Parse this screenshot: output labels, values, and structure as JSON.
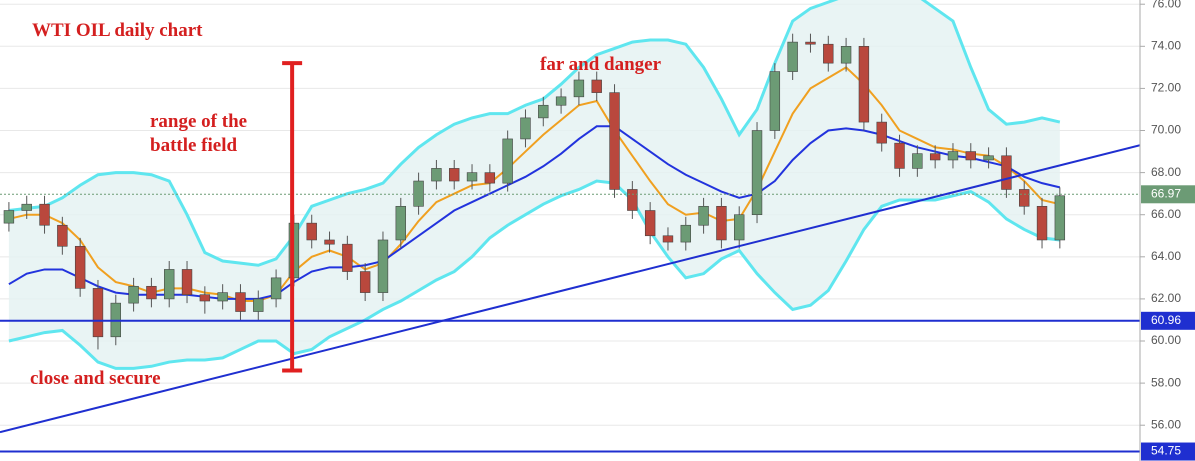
{
  "chart_data": {
    "type": "candlestick",
    "title": "WTI OIL daily chart",
    "annotations": [
      [
        "range of the",
        "battle field"
      ],
      [
        "far and danger"
      ],
      [
        "close and secure"
      ]
    ],
    "annotation_color": "#d41f1f",
    "xlim": [
      -0.5,
      63.5
    ],
    "ylim": [
      54.3,
      76.2
    ],
    "yticks": [
      {
        "value": 56,
        "label": "56.00"
      },
      {
        "value": 58,
        "label": "58.00"
      },
      {
        "value": 60,
        "label": "60.00"
      },
      {
        "value": 62,
        "label": "62.00"
      },
      {
        "value": 64,
        "label": "64.00"
      },
      {
        "value": 66,
        "label": "66.00"
      },
      {
        "value": 68,
        "label": "68.00"
      },
      {
        "value": 70,
        "label": "70.00"
      },
      {
        "value": 72,
        "label": "72.00"
      },
      {
        "value": 74,
        "label": "74.00"
      },
      {
        "value": 76,
        "label": "76.00"
      }
    ],
    "grid": true,
    "candles": {
      "up_color": "#6c9b75",
      "down_color": "#b9483d",
      "open": [
        65.6,
        66.2,
        66.5,
        65.5,
        64.5,
        62.5,
        60.2,
        61.8,
        62.6,
        62.0,
        63.4,
        62.2,
        61.9,
        62.3,
        61.4,
        62.0,
        63.0,
        65.6,
        64.8,
        64.6,
        63.3,
        62.3,
        64.8,
        66.4,
        67.6,
        68.2,
        67.6,
        68.0,
        67.5,
        69.6,
        70.6,
        71.2,
        71.6,
        72.4,
        71.8,
        67.2,
        66.2,
        65.0,
        64.7,
        65.5,
        66.4,
        64.8,
        66.0,
        70.0,
        72.8,
        74.2,
        74.1,
        73.2,
        74.0,
        70.4,
        69.4,
        68.2,
        68.9,
        68.6,
        69.0,
        68.6,
        68.8,
        67.2,
        66.4,
        64.8
      ],
      "high": [
        66.6,
        66.9,
        66.9,
        65.9,
        64.9,
        62.9,
        62.2,
        63.0,
        63.0,
        63.8,
        63.8,
        62.6,
        62.7,
        62.7,
        62.4,
        63.4,
        66.0,
        66.0,
        65.2,
        65.0,
        63.7,
        65.2,
        66.8,
        68.0,
        68.6,
        68.6,
        68.4,
        68.4,
        70.0,
        71.0,
        71.6,
        72.0,
        72.8,
        72.8,
        72.2,
        67.6,
        66.6,
        65.4,
        65.9,
        66.8,
        66.8,
        66.4,
        70.4,
        73.2,
        74.6,
        74.6,
        74.5,
        74.4,
        74.4,
        70.8,
        69.8,
        69.3,
        69.3,
        69.4,
        69.4,
        69.2,
        69.2,
        67.6,
        66.8,
        67.3
      ],
      "low": [
        65.2,
        65.8,
        65.1,
        64.1,
        62.1,
        59.6,
        59.8,
        61.4,
        61.6,
        61.6,
        61.8,
        61.3,
        61.5,
        61.0,
        61.0,
        61.6,
        62.6,
        64.4,
        64.2,
        62.9,
        61.9,
        61.9,
        64.4,
        66.0,
        67.2,
        67.2,
        67.2,
        67.1,
        67.1,
        69.2,
        70.2,
        70.8,
        71.2,
        71.4,
        66.8,
        65.8,
        64.6,
        64.3,
        64.3,
        65.1,
        64.4,
        64.4,
        65.6,
        69.6,
        72.4,
        73.7,
        72.8,
        72.8,
        70.0,
        69.0,
        67.8,
        67.8,
        68.2,
        68.2,
        68.2,
        68.2,
        66.8,
        66.0,
        64.4,
        64.4
      ],
      "close": [
        66.2,
        66.5,
        65.5,
        64.5,
        62.5,
        60.2,
        61.8,
        62.6,
        62.0,
        63.4,
        62.2,
        61.9,
        62.3,
        61.4,
        62.0,
        63.0,
        65.6,
        64.8,
        64.6,
        63.3,
        62.3,
        64.8,
        66.4,
        67.6,
        68.2,
        67.6,
        68.0,
        67.5,
        69.6,
        70.6,
        71.2,
        71.6,
        72.4,
        71.8,
        67.2,
        66.2,
        65.0,
        64.7,
        65.5,
        66.4,
        64.8,
        66.0,
        70.0,
        72.8,
        74.2,
        74.1,
        73.2,
        74.0,
        70.4,
        69.4,
        68.2,
        68.9,
        68.6,
        69.0,
        68.6,
        68.8,
        67.2,
        66.4,
        64.8,
        66.9
      ]
    },
    "bands": {
      "color": "#5fe6ef",
      "fill": "#e3f1f1",
      "upper": [
        66.2,
        66.3,
        66.4,
        66.8,
        67.4,
        67.9,
        68.0,
        68.0,
        67.9,
        67.6,
        66.0,
        64.2,
        63.8,
        63.7,
        63.6,
        63.9,
        65.0,
        66.4,
        66.7,
        67.0,
        67.2,
        67.5,
        68.4,
        69.2,
        69.8,
        70.3,
        70.6,
        70.8,
        70.8,
        71.2,
        71.5,
        72.2,
        73.0,
        73.6,
        73.9,
        74.2,
        74.3,
        74.3,
        74.1,
        73.0,
        71.5,
        69.8,
        71.0,
        73.2,
        75.2,
        75.8,
        76.1,
        76.4,
        76.6,
        76.8,
        76.7,
        76.4,
        75.8,
        75.2,
        73.0,
        71.0,
        70.3,
        70.4,
        70.6,
        70.4
      ],
      "lower": [
        60.0,
        60.2,
        60.4,
        60.5,
        59.8,
        59.0,
        58.7,
        58.7,
        58.8,
        59.0,
        59.1,
        59.1,
        59.2,
        59.6,
        60.0,
        60.0,
        59.4,
        59.6,
        60.2,
        60.6,
        61.0,
        61.5,
        61.9,
        62.4,
        62.9,
        63.3,
        64.0,
        64.9,
        65.5,
        66.0,
        66.5,
        66.9,
        67.2,
        67.6,
        67.5,
        66.7,
        65.2,
        64.0,
        63.0,
        63.2,
        63.9,
        64.3,
        63.2,
        62.3,
        61.5,
        61.7,
        62.4,
        63.8,
        65.3,
        66.4,
        66.7,
        66.7,
        66.7,
        66.9,
        67.1,
        66.6,
        65.8,
        65.3,
        64.9,
        64.8
      ]
    },
    "averages": [
      {
        "color": "#f0a020",
        "values": [
          65.8,
          66.0,
          66.0,
          65.6,
          64.8,
          63.5,
          62.8,
          62.6,
          62.3,
          62.5,
          62.5,
          62.3,
          62.2,
          61.9,
          61.9,
          62.2,
          63.3,
          64.0,
          64.3,
          64.0,
          63.4,
          63.7,
          64.6,
          65.7,
          66.6,
          67.0,
          67.4,
          67.5,
          68.2,
          69.0,
          69.8,
          70.5,
          71.2,
          71.4,
          70.0,
          68.8,
          67.6,
          66.5,
          66.0,
          66.1,
          65.7,
          65.8,
          67.2,
          69.0,
          70.8,
          72.0,
          72.5,
          73.0,
          72.2,
          71.2,
          70.0,
          69.6,
          69.2,
          69.1,
          68.9,
          68.8,
          68.3,
          67.6,
          66.7,
          66.5
        ]
      },
      {
        "color": "#2233dd",
        "values": [
          62.7,
          63.2,
          63.4,
          63.4,
          63.0,
          62.6,
          62.3,
          62.2,
          62.2,
          62.2,
          62.2,
          62.1,
          62.0,
          62.0,
          62.0,
          62.2,
          62.8,
          63.3,
          63.5,
          63.5,
          63.6,
          63.8,
          64.4,
          65.0,
          65.6,
          66.2,
          66.6,
          67.0,
          67.4,
          67.8,
          68.3,
          68.9,
          69.6,
          70.2,
          70.2,
          69.6,
          69.0,
          68.4,
          67.9,
          67.5,
          67.1,
          66.8,
          67.0,
          67.6,
          68.6,
          69.4,
          70.0,
          70.1,
          70.0,
          69.8,
          69.5,
          69.2,
          69.0,
          68.8,
          68.7,
          68.5,
          68.3,
          67.8,
          67.5,
          67.3
        ]
      }
    ],
    "trendline": {
      "color": "#1f2fd0",
      "x": [
        -0.5,
        63.5
      ],
      "y": [
        55.67,
        69.3
      ]
    },
    "range_bar": {
      "color": "#e02020",
      "x": 15.9,
      "y": [
        58.6,
        73.2
      ]
    },
    "levels": [
      {
        "value": 60.96,
        "color": "#1f2fd0"
      },
      {
        "value": 54.75,
        "color": "#1f2fd0"
      }
    ],
    "last_price": {
      "value": 66.97,
      "color": "#6c9b75"
    }
  }
}
